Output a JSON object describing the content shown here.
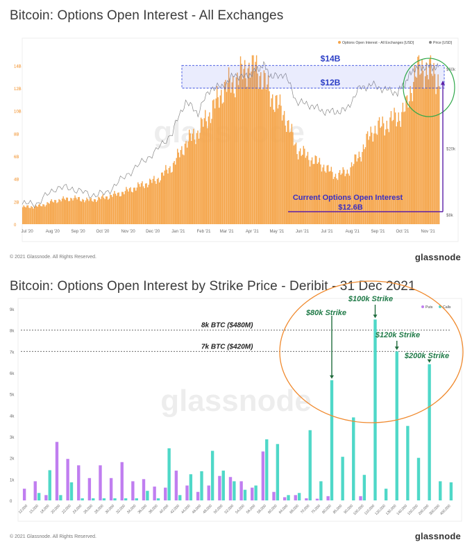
{
  "chart1": {
    "title": "Bitcoin: Options Open Interest - All Exchanges",
    "legend": [
      {
        "label": "Options Open Interest - All Exchanges [USD]",
        "color": "#f5a54a"
      },
      {
        "label": "Price [USD]",
        "color": "#888888"
      }
    ],
    "footer": "© 2021 Glassnode. All Rights Reserved.",
    "brand": "glassnode",
    "watermark": "glassnode",
    "annotations": {
      "band_top": "$14B",
      "band_bottom": "$12B",
      "current_line1": "Current Options Open Interest",
      "current_line2": "$12.6B"
    }
  },
  "chart2": {
    "title": "Bitcoin: Options Open Interest by Strike Price - Deribit - 31 Dec 2021",
    "legend": [
      {
        "label": "Puts",
        "color": "#c07ef0"
      },
      {
        "label": "Calls",
        "color": "#4fd8c8"
      }
    ],
    "footer": "© 2021 Glassnode. All Rights Reserved.",
    "brand": "glassnode",
    "watermark": "glassnode",
    "annotations": {
      "line_8k": "8k BTC ($480M)",
      "line_7k": "7k BTC ($420M)",
      "s80": "$80k Strike",
      "s100": "$100k Strike",
      "s120": "$120k Strike",
      "s200": "$200k Strike"
    }
  },
  "chart_data": [
    {
      "type": "area",
      "title": "Bitcoin: Options Open Interest - All Exchanges",
      "x_ticks": [
        "Jul '20",
        "Aug '20",
        "Sep '20",
        "Oct '20",
        "Nov '20",
        "Dec '20",
        "Jan '21",
        "Feb '21",
        "Mar '21",
        "Apr '21",
        "May '21",
        "Jun '21",
        "Jul '21",
        "Aug '21",
        "Sep '21",
        "Oct '21",
        "Nov '21"
      ],
      "y_left_ticks": [
        "0",
        "2B",
        "4B",
        "6B",
        "8B",
        "10B",
        "12B",
        "14B"
      ],
      "y_left_lim": [
        0,
        15000000000
      ],
      "y_right_ticks": [
        "$8k",
        "$20k",
        "$60k"
      ],
      "grid": false,
      "legend_position": "top-right",
      "series": [
        {
          "name": "Options Open Interest - All Exchanges [USD]",
          "color": "#f5a54a",
          "x": [
            "2020-06-25",
            "2020-07-15",
            "2020-08-05",
            "2020-08-25",
            "2020-09-15",
            "2020-10-05",
            "2020-10-25",
            "2020-11-15",
            "2020-12-05",
            "2020-12-25",
            "2021-01-10",
            "2021-01-25",
            "2021-02-10",
            "2021-02-25",
            "2021-03-10",
            "2021-03-25",
            "2021-04-05",
            "2021-04-15",
            "2021-04-25",
            "2021-05-10",
            "2021-05-25",
            "2021-06-10",
            "2021-06-25",
            "2021-07-10",
            "2021-07-25",
            "2021-08-10",
            "2021-08-25",
            "2021-09-10",
            "2021-09-25",
            "2021-10-05",
            "2021-10-15",
            "2021-10-25",
            "2021-11-05",
            "2021-11-15"
          ],
          "values": [
            1500000000.0,
            1600000000.0,
            2100000000.0,
            2300000000.0,
            2100000000.0,
            2400000000.0,
            2800000000.0,
            3400000000.0,
            3900000000.0,
            5200000000.0,
            7200000000.0,
            8200000000.0,
            10000000000.0,
            12000000000.0,
            12600000000.0,
            13800000000.0,
            14000000000.0,
            12500000000.0,
            11200000000.0,
            9600000000.0,
            6600000000.0,
            5800000000.0,
            5200000000.0,
            4300000000.0,
            4600000000.0,
            6200000000.0,
            8300000000.0,
            8800000000.0,
            9500000000.0,
            10200000000.0,
            13200000000.0,
            13800000000.0,
            13400000000.0,
            12600000000.0
          ]
        },
        {
          "name": "Price [USD]",
          "color": "#888888",
          "x": [
            "2020-06-25",
            "2020-07-15",
            "2020-08-05",
            "2020-08-25",
            "2020-09-15",
            "2020-10-05",
            "2020-10-25",
            "2020-11-15",
            "2020-12-05",
            "2020-12-25",
            "2021-01-10",
            "2021-01-25",
            "2021-02-10",
            "2021-02-25",
            "2021-03-10",
            "2021-03-25",
            "2021-04-05",
            "2021-04-15",
            "2021-04-25",
            "2021-05-10",
            "2021-05-25",
            "2021-06-10",
            "2021-06-25",
            "2021-07-10",
            "2021-07-25",
            "2021-08-10",
            "2021-08-25",
            "2021-09-10",
            "2021-09-25",
            "2021-10-05",
            "2021-10-15",
            "2021-10-25",
            "2021-11-05",
            "2021-11-15"
          ],
          "values": [
            9200,
            9400,
            11600,
            11500,
            10500,
            10700,
            13100,
            16000,
            19200,
            24700,
            38000,
            32500,
            46000,
            47000,
            55000,
            53500,
            58500,
            63000,
            53000,
            56000,
            38000,
            36500,
            33500,
            33000,
            34000,
            46000,
            48000,
            45000,
            43000,
            50000,
            60000,
            61000,
            62000,
            60000
          ]
        }
      ]
    },
    {
      "type": "bar",
      "title": "Bitcoin: Options Open Interest by Strike Price - Deribit - 31 Dec 2021",
      "y_ticks": [
        "0",
        "1k",
        "2k",
        "3k",
        "4k",
        "5k",
        "6k",
        "7k",
        "8k",
        "9k"
      ],
      "y_lim": [
        0,
        9000
      ],
      "grid": false,
      "legend_position": "top-right",
      "categories": [
        "12,000",
        "15,000",
        "18,000",
        "20,000",
        "22,000",
        "24,000",
        "26,000",
        "28,000",
        "30,000",
        "32,000",
        "34,000",
        "36,000",
        "38,000",
        "40,000",
        "42,000",
        "44,000",
        "46,000",
        "48,000",
        "50,000",
        "52,000",
        "54,000",
        "56,000",
        "58,000",
        "60,000",
        "64,000",
        "68,000",
        "70,000",
        "75,000",
        "80,000",
        "85,000",
        "90,000",
        "100,000",
        "110,000",
        "120,000",
        "130,000",
        "140,000",
        "150,000",
        "200,000",
        "300,000",
        "400,000"
      ],
      "series": [
        {
          "name": "Puts",
          "color": "#c07ef0",
          "values": [
            550,
            900,
            250,
            2750,
            1950,
            1650,
            1050,
            1650,
            1050,
            1800,
            900,
            1000,
            650,
            600,
            1400,
            700,
            400,
            700,
            1150,
            1100,
            900,
            600,
            2300,
            400,
            150,
            250,
            100,
            80,
            200,
            0,
            0,
            200,
            0,
            0,
            0,
            0,
            0,
            0,
            0,
            0
          ]
        },
        {
          "name": "Calls",
          "color": "#4fd8c8",
          "values": [
            0,
            350,
            1420,
            250,
            850,
            100,
            100,
            100,
            100,
            100,
            100,
            450,
            100,
            2450,
            250,
            1230,
            1370,
            2330,
            1400,
            900,
            500,
            700,
            2870,
            2650,
            250,
            350,
            3300,
            900,
            5650,
            2050,
            3900,
            1200,
            8500,
            550,
            7000,
            3500,
            2000,
            6400,
            900,
            850
          ]
        }
      ]
    }
  ]
}
